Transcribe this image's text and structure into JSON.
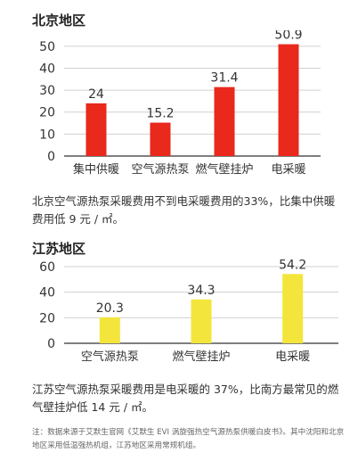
{
  "chart_data": [
    {
      "type": "bar",
      "title": "北京地区",
      "categories": [
        "集中供暖",
        "空气源热泵",
        "燃气壁挂炉",
        "电采暖"
      ],
      "values": [
        24,
        15.2,
        31.4,
        50.9
      ],
      "value_labels": [
        "24",
        "15.2",
        "31.4",
        "50.9"
      ],
      "yticks": [
        "0",
        "10",
        "20",
        "30",
        "40",
        "50"
      ],
      "ylim": [
        0,
        55
      ],
      "bar_color": "#e8291c",
      "grid": true,
      "xlabel": "",
      "ylabel": ""
    },
    {
      "type": "bar",
      "title": "江苏地区",
      "categories": [
        "空气源热泵",
        "燃气壁挂炉",
        "电采暖"
      ],
      "values": [
        20.3,
        34.3,
        54.2
      ],
      "value_labels": [
        "20.3",
        "34.3",
        "54.2"
      ],
      "yticks": [
        "0",
        "20",
        "40",
        "60"
      ],
      "ylim": [
        0,
        60
      ],
      "bar_color": "#f3e53b",
      "grid": true,
      "xlabel": "",
      "ylabel": ""
    }
  ],
  "paragraphs": {
    "beijing": "北京空气源热泵采暖费用不到电采暖费用的33%，比集中供暖费用低 9 元 / ㎡。",
    "jiangsu": "江苏空气源热泵采暖费用是电采暖的 37%，比南方最常见的燃气壁挂炉低 14 元 / ㎡。"
  },
  "note": "注：数据来源于艾默生官网《艾默生 EVI 涡旋强热空气源热泵供暖白皮书》。其中沈阳和北京地区采用低温强热机组，江苏地区采用常规机组。",
  "colors": {
    "grid": "#d0d0d0",
    "axis": "#333333",
    "text": "#333333"
  }
}
